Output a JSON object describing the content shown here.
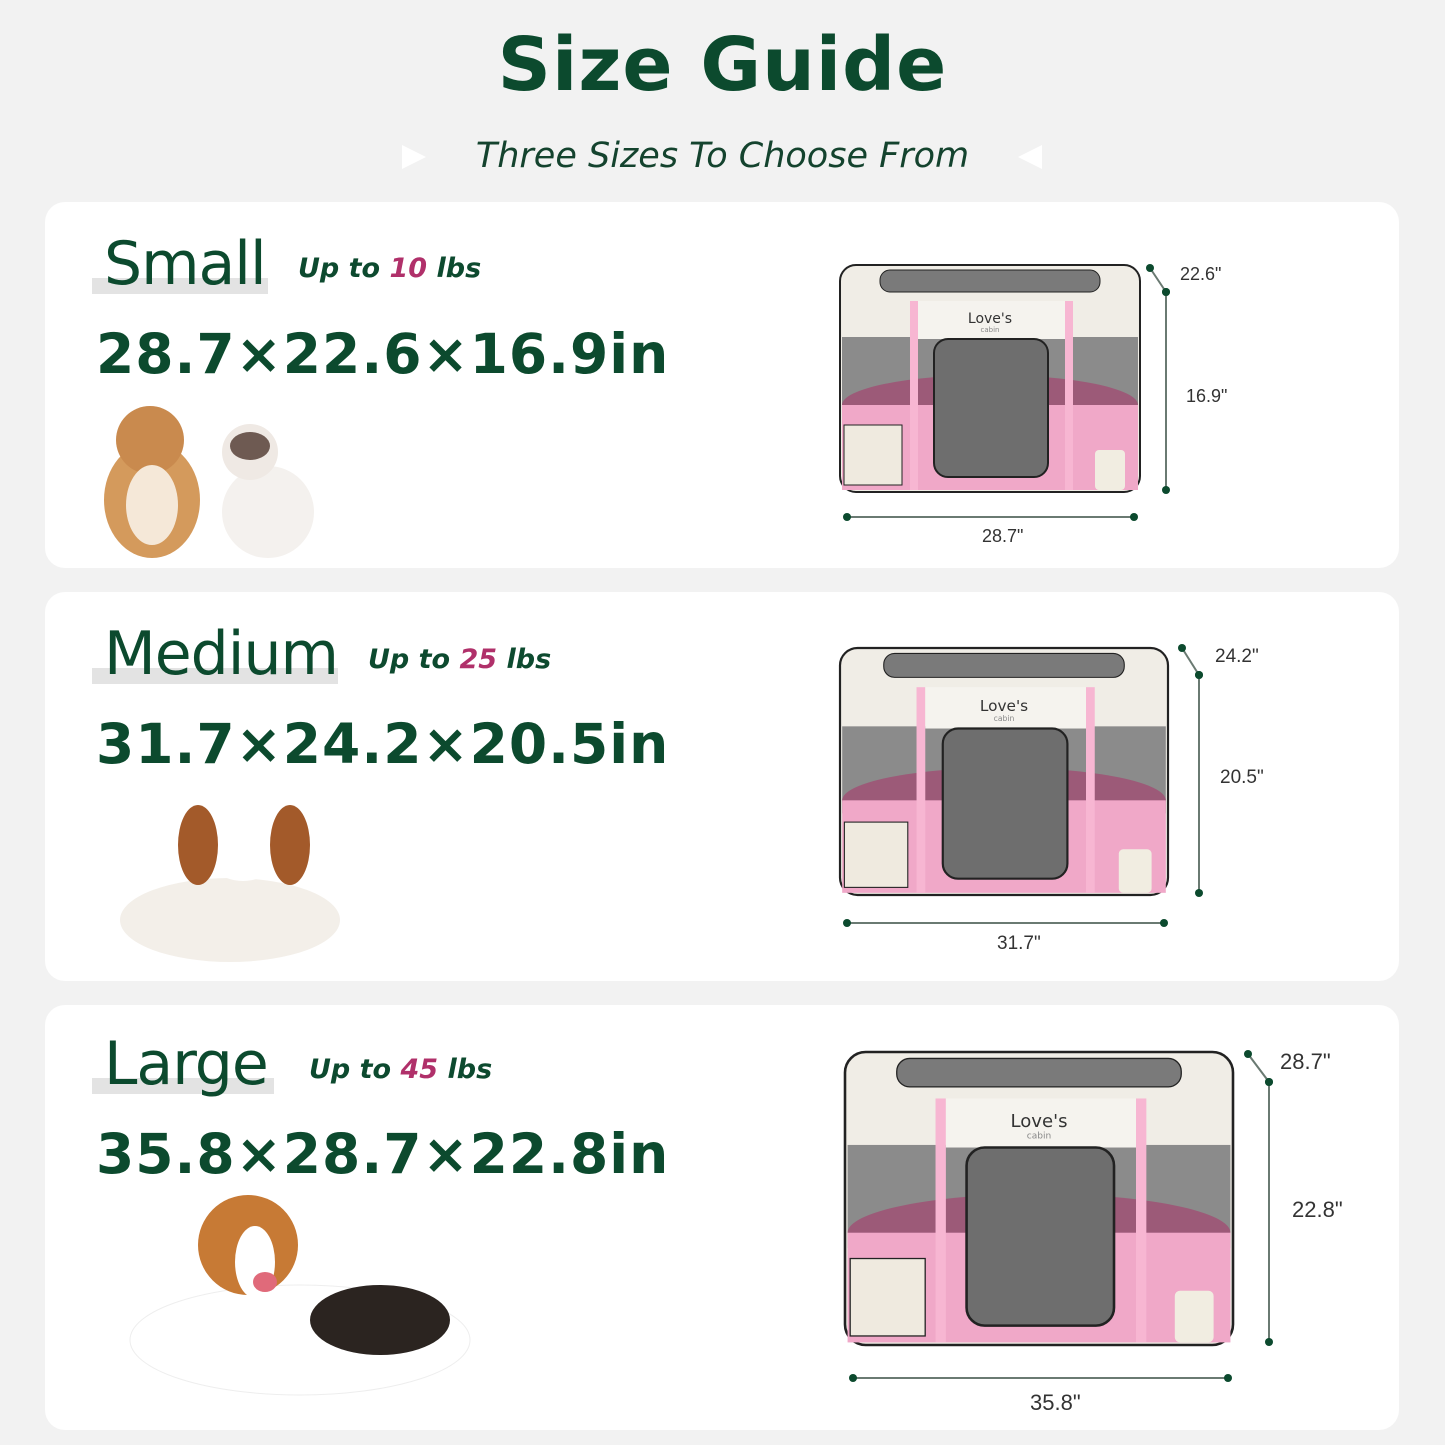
{
  "header": {
    "title": "Size Guide",
    "subtitle": "Three Sizes To Choose From"
  },
  "colors": {
    "brand_green": "#0c4a2e",
    "accent_pink": "#b0306a",
    "pen_pink": "#f0a8c8",
    "background": "#f2f2f2"
  },
  "product_logo": {
    "brand": "Love's",
    "sub": "cabin"
  },
  "sizes": [
    {
      "name": "Small",
      "weight_prefix": "Up to",
      "weight_value": "10",
      "weight_unit": "lbs",
      "dimensions": "28.7×22.6×16.9in",
      "length_label": "28.7\"",
      "depth_label": "22.6\"",
      "height_label": "16.9\"",
      "pets": [
        "dog",
        "cat"
      ]
    },
    {
      "name": "Medium",
      "weight_prefix": "Up to",
      "weight_value": "25",
      "weight_unit": "lbs",
      "dimensions": "31.7×24.2×20.5in",
      "length_label": "31.7\"",
      "depth_label": "24.2\"",
      "height_label": "20.5\"",
      "pets": [
        "dog"
      ]
    },
    {
      "name": "Large",
      "weight_prefix": "Up to",
      "weight_value": "45",
      "weight_unit": "lbs",
      "dimensions": "35.8×28.7×22.8in",
      "length_label": "35.8\"",
      "depth_label": "28.7\"",
      "height_label": "22.8\"",
      "pets": [
        "dog"
      ]
    }
  ]
}
